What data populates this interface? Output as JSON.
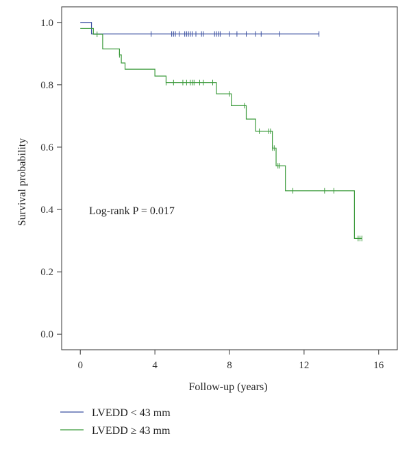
{
  "chart_data": {
    "type": "line",
    "xlabel": "Follow-up (years)",
    "ylabel": "Survival probability",
    "xlim": [
      -1,
      17
    ],
    "ylim": [
      -0.05,
      1.05
    ],
    "xticks": [
      0,
      4,
      8,
      12,
      16
    ],
    "yticks": [
      0.0,
      0.2,
      0.4,
      0.6,
      0.8,
      1.0
    ],
    "xtick_labels": [
      "0",
      "4",
      "8",
      "12",
      "16"
    ],
    "ytick_labels": [
      "0.0",
      "0.2",
      "0.4",
      "0.6",
      "0.8",
      "1.0"
    ],
    "annotation": "Log-rank P = 0.017",
    "grid": false,
    "legend_position": "bottom-left",
    "series": [
      {
        "name": "LVEDD < 43 mm",
        "color": "#3a4fa0",
        "steps": [
          [
            0,
            1.0
          ],
          [
            0.6,
            0.963
          ],
          [
            12.8,
            0.963
          ]
        ],
        "censored_x": [
          3.8,
          4.9,
          5.0,
          5.1,
          5.3,
          5.6,
          5.7,
          5.8,
          5.9,
          6.0,
          6.2,
          6.5,
          6.6,
          7.2,
          7.3,
          7.4,
          7.5,
          8.0,
          8.4,
          8.9,
          9.4,
          9.7,
          10.7,
          12.8
        ]
      },
      {
        "name": "LVEDD ≥ 43 mm",
        "color": "#3a9a3a",
        "steps": [
          [
            0,
            0.981
          ],
          [
            0.7,
            0.962
          ],
          [
            1.2,
            0.915
          ],
          [
            2.1,
            0.896
          ],
          [
            2.2,
            0.87
          ],
          [
            2.4,
            0.85
          ],
          [
            4.0,
            0.828
          ],
          [
            4.6,
            0.807
          ],
          [
            7.3,
            0.771
          ],
          [
            8.1,
            0.733
          ],
          [
            8.9,
            0.69
          ],
          [
            9.4,
            0.651
          ],
          [
            10.3,
            0.597
          ],
          [
            10.5,
            0.54
          ],
          [
            11.0,
            0.46
          ],
          [
            14.7,
            0.307
          ],
          [
            15.1,
            0.307
          ]
        ],
        "censored_x": [
          0.9,
          2.1,
          4.6,
          5.0,
          5.5,
          5.7,
          5.9,
          6.0,
          6.1,
          6.4,
          6.6,
          7.1,
          8.0,
          8.8,
          9.6,
          10.1,
          10.2,
          10.3,
          10.4,
          10.6,
          10.7,
          11.4,
          13.1,
          13.6,
          14.9,
          15.0,
          15.1
        ]
      }
    ]
  }
}
